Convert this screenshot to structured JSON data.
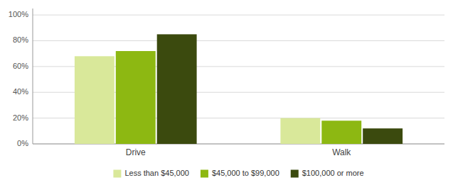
{
  "chart_data": {
    "type": "bar",
    "categories": [
      "Drive",
      "Walk"
    ],
    "series": [
      {
        "name": "Less than $45,000",
        "color": "#d9e89a",
        "values": [
          0.68,
          0.2
        ]
      },
      {
        "name": "$45,000 to $99,000",
        "color": "#8db812",
        "values": [
          0.72,
          0.18
        ]
      },
      {
        "name": "$100,000 or more",
        "color": "#3b4a0e",
        "values": [
          0.85,
          0.12
        ]
      }
    ],
    "ylim": [
      0,
      1.05
    ],
    "yticks": [
      {
        "value": 0,
        "label": "0%"
      },
      {
        "value": 0.2,
        "label": "20%"
      },
      {
        "value": 0.4,
        "label": "40%"
      },
      {
        "value": 0.6,
        "label": "60%"
      },
      {
        "value": 0.8,
        "label": "80%"
      },
      {
        "value": 1.0,
        "label": "100%"
      }
    ],
    "grid": true,
    "legend": "bottom"
  }
}
